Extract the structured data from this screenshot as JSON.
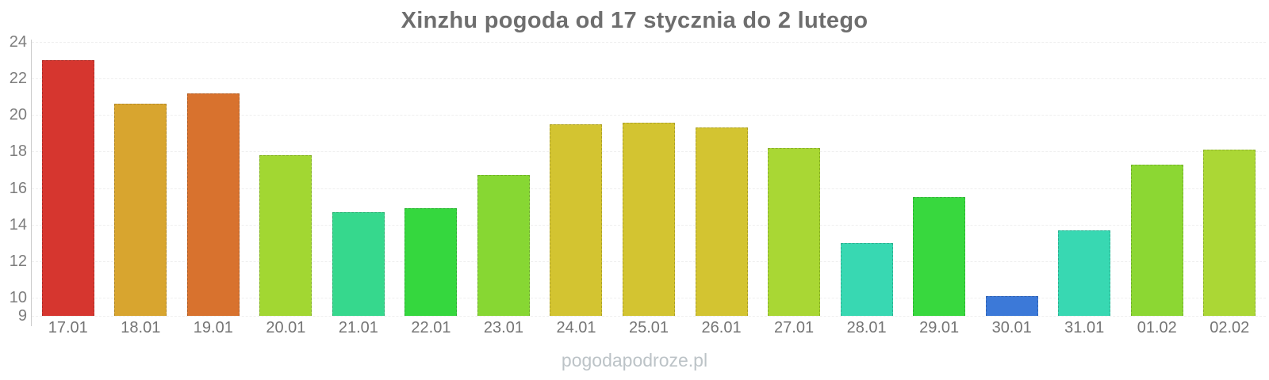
{
  "page": {
    "watermark": "pogodapodroze.pl"
  },
  "chart_data": {
    "type": "bar",
    "title": "Xinzhu pogoda od 17 stycznia do 2 lutego",
    "categories": [
      "17.01",
      "18.01",
      "19.01",
      "20.01",
      "21.01",
      "22.01",
      "23.01",
      "24.01",
      "25.01",
      "26.01",
      "27.01",
      "28.01",
      "29.01",
      "30.01",
      "31.01",
      "01.02",
      "02.02"
    ],
    "values": [
      23.0,
      20.6,
      21.2,
      17.8,
      14.7,
      14.9,
      16.7,
      19.5,
      19.6,
      19.3,
      18.2,
      13.0,
      15.5,
      10.1,
      13.7,
      17.3,
      18.1
    ],
    "bar_colors": [
      "#d6362f",
      "#d8a52f",
      "#d8722e",
      "#a2d732",
      "#36d88d",
      "#35d73e",
      "#87d733",
      "#d3c431",
      "#d3c431",
      "#d3c431",
      "#a9d734",
      "#38d8b2",
      "#38d83e",
      "#3c79d8",
      "#38d8b2",
      "#8cd733",
      "#abd735"
    ],
    "xlabel": "",
    "ylabel": "",
    "ylim": [
      9,
      24
    ],
    "y_ticks": [
      24,
      22,
      20,
      18,
      16,
      14,
      12,
      10,
      9
    ],
    "grid": true,
    "legend": false,
    "colors": {
      "axis_line": "#cccccc",
      "grid_line": "#efefef",
      "title_text": "#6e6e6e",
      "tick_text": "#7d7d7d",
      "watermark_text": "#bcc3c7"
    }
  }
}
